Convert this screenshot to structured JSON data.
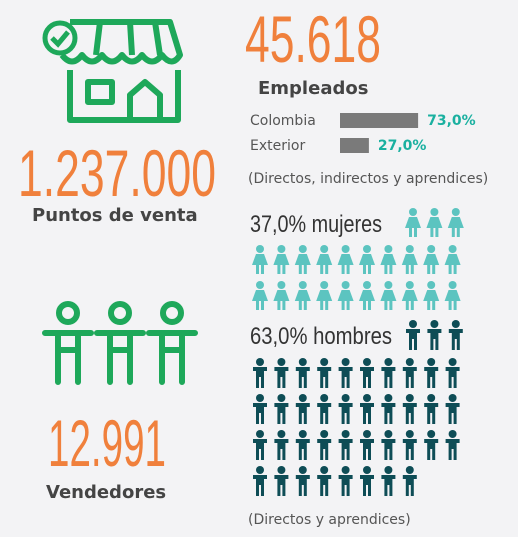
{
  "employees": {
    "total": "45.618",
    "label": "Empleados",
    "breakdown": [
      {
        "name": "Colombia",
        "value": 73,
        "label": "73,0%"
      },
      {
        "name": "Exterior",
        "value": 27,
        "label": "27,0%"
      }
    ],
    "note": "(Directos, indirectos y aprendices)"
  },
  "points_of_sale": {
    "total": "1.237.000",
    "label": "Puntos de venta"
  },
  "gender": {
    "women": "37,0% mujeres",
    "men": "63,0% hombres",
    "note": "(Directos y aprendices)"
  },
  "sellers": {
    "total": "12.991",
    "label": "Vendedores"
  }
}
